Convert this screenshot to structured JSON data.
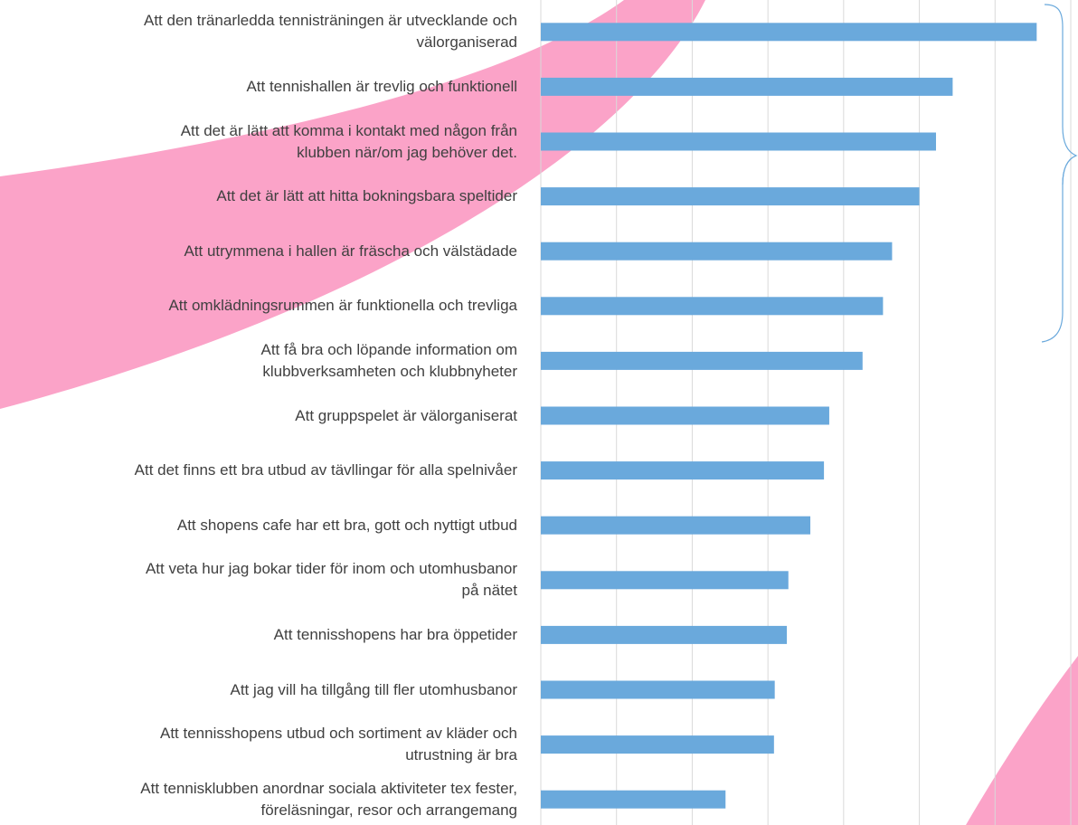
{
  "chart_data": {
    "type": "barh",
    "categories": [
      "Att den tränarledda tennisträningen är utvecklande och\nvälorganiserad",
      "Att tennishallen är trevlig och funktionell",
      "Att det är lätt att komma i kontakt med någon från\nklubben när/om jag behöver det.",
      "Att det är lätt att hitta bokningsbara speltider",
      "Att utrymmena i hallen är fräscha och välstädade",
      "Att omklädningsrummen är funktionella och trevliga",
      "Att få bra och löpande  information om\nklubbverksamheten och klubbnyheter",
      "Att gruppspelet är välorganiserat",
      "Att det finns ett bra utbud av tävllingar för alla spelnivåer",
      "Att shopens cafe har ett bra, gott och nyttigt utbud",
      "Att veta hur jag bokar tider för inom och utomhusbanor\npå nätet",
      "Att tennisshopens har bra öppetider",
      "Att jag vill ha tillgång till fler utomhusbanor",
      "Att tennisshopens utbud och sortiment av kläder och\nutrustning är bra",
      "Att tennisklubben anordnar sociala aktiviteter tex fester,\nföreläsningar, resor och arrangemang"
    ],
    "values": [
      6.55,
      5.44,
      5.22,
      5.0,
      4.64,
      4.52,
      4.25,
      3.81,
      3.74,
      3.56,
      3.27,
      3.25,
      3.09,
      3.08,
      2.44
    ],
    "color": "#6aa9dc",
    "xlim": [
      0,
      7
    ],
    "xticks": [
      0,
      1,
      2,
      3,
      4,
      5,
      6,
      7
    ],
    "grid": true
  }
}
